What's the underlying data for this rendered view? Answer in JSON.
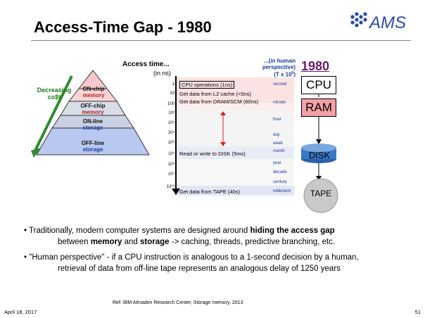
{
  "slide": {
    "title": "Access-Time Gap - 1980",
    "logo_text": "AMS",
    "date": "April 18, 2017",
    "page_number": "51",
    "reference": "Ref: IBM Almaden Research Center, Storage memory, 2013"
  },
  "pyramid": {
    "cost_label_line1": "Decreasing",
    "cost_label_line2": "co$t",
    "levels": [
      {
        "line1": "ON-chip",
        "line2": "memory"
      },
      {
        "line1": "OFF-chip",
        "line2": "memory"
      },
      {
        "line1": "ON-line",
        "line2": "storage"
      },
      {
        "line1": "OFF-line",
        "line2": "storage"
      }
    ]
  },
  "table": {
    "access_time_label": "Access time...",
    "unit_label": "(in ns)",
    "human_label_line1": "...(in human",
    "human_label_line2": "perspective)",
    "human_label_line3": "(T x 10",
    "human_label_sup": "9",
    "human_label_close": ")",
    "exponents": [
      "1",
      "10",
      "100",
      "10³",
      "10⁴",
      "10⁵",
      "10⁶",
      "10⁷",
      "10⁸",
      "10⁹",
      "10¹⁰"
    ],
    "descriptions": [
      "CPU operations  (1ns)",
      "Get data from L2 cache (<5ns)",
      "Get data from DRAM/SCM (60ns)",
      "Read or write to DISK   (5ms)",
      "Get data from TAPE   (40s)"
    ],
    "human_units": [
      "second",
      "minute",
      "hour",
      "day",
      "week",
      "month",
      "year",
      "decade",
      "century",
      "millenium"
    ]
  },
  "hierarchy": {
    "year": "1980",
    "cpu": "CPU",
    "ram": "RAM",
    "disk": "DISK",
    "tape": "TAPE"
  },
  "bullets": {
    "b1_pre": "Traditionally, modern computer systems are designed around ",
    "b1_bold": "hiding the access gap",
    "b1_l2_pre": "between ",
    "b1_l2_bold1": "memory",
    "b1_l2_mid": " and ",
    "b1_l2_bold2": "storage",
    "b1_l2_post": " -> caching, threads, predictive branching, etc.",
    "b2_l1": "\"Human perspective\" - if a CPU instruction is analogous to a 1-second decision by a human,",
    "b2_l2": "retrieval of data from off-line tape represents an analogous delay of 1250 years"
  },
  "colors": {
    "green_arrow": "#2e8b2e",
    "ram_fill": "#f3a1a8",
    "disk_fill": "#3a78c8",
    "tape_fill": "#c9c9c9",
    "year_color": "#6a1b6a"
  }
}
